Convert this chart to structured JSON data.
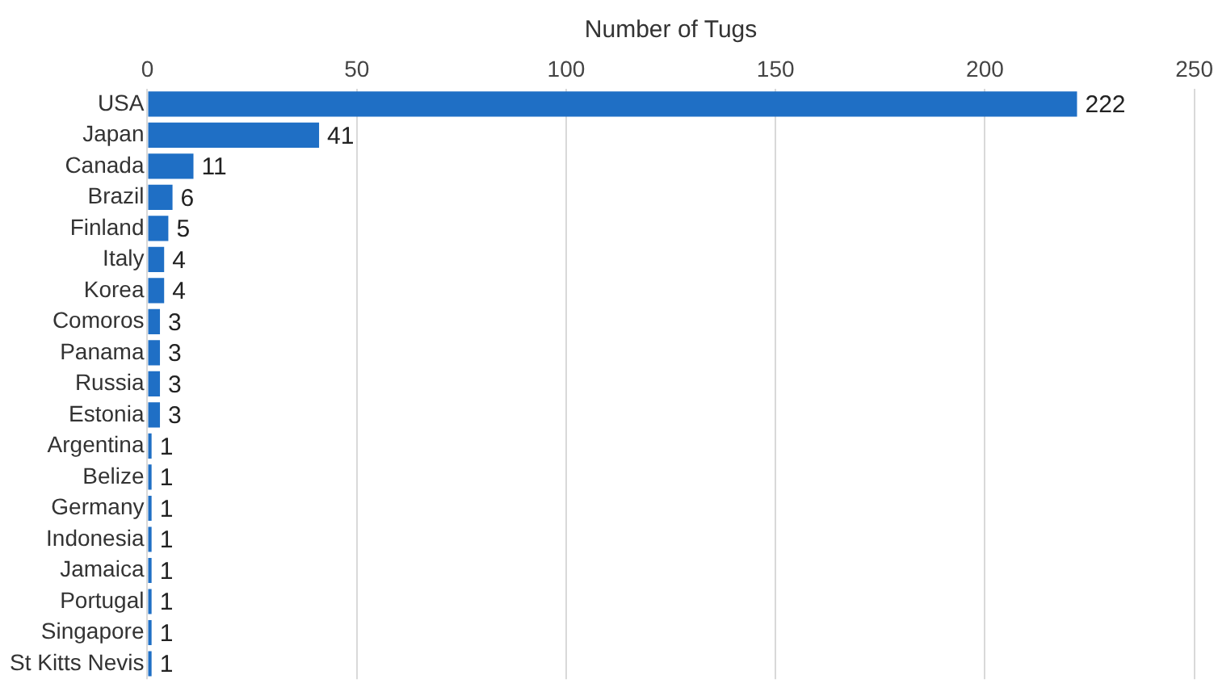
{
  "chart_data": {
    "type": "bar",
    "orientation": "horizontal",
    "xlabel": "Number of Tugs",
    "categories": [
      "USA",
      "Japan",
      "Canada",
      "Brazil",
      "Finland",
      "Italy",
      "Korea",
      "Comoros",
      "Panama",
      "Russia",
      "Estonia",
      "Argentina",
      "Belize",
      "Germany",
      "Indonesia",
      "Jamaica",
      "Portugal",
      "Singapore",
      "St Kitts Nevis"
    ],
    "values": [
      222,
      41,
      11,
      6,
      5,
      4,
      4,
      3,
      3,
      3,
      3,
      1,
      1,
      1,
      1,
      1,
      1,
      1,
      1
    ],
    "color": "#1f6fc5",
    "xlim": [
      0,
      250
    ],
    "xticks": [
      0,
      50,
      100,
      150,
      200,
      250
    ],
    "grid": "x",
    "legend": false,
    "data_labels": true
  }
}
